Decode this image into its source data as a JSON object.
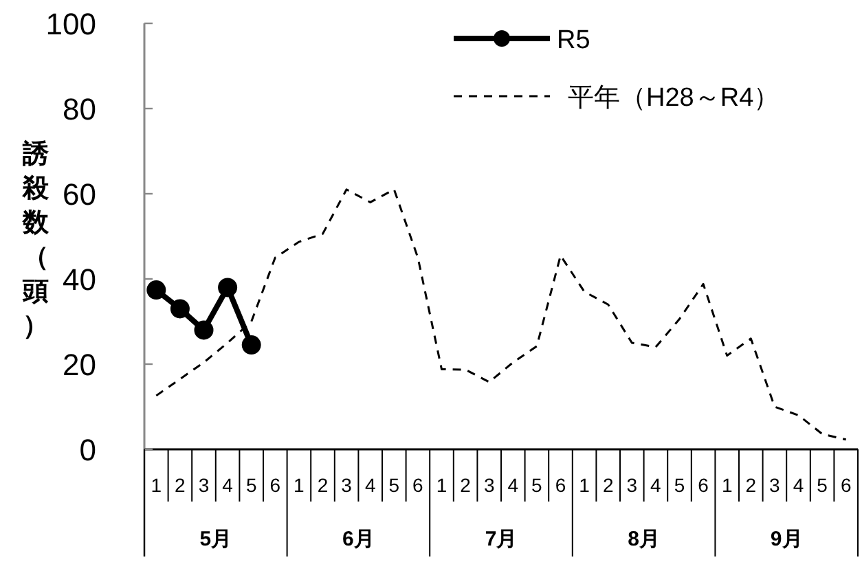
{
  "chart_data": {
    "type": "line",
    "ylabel": "誘殺数（頭）",
    "categories": [
      "1",
      "2",
      "3",
      "4",
      "5",
      "6",
      "1",
      "2",
      "3",
      "4",
      "5",
      "6",
      "1",
      "2",
      "3",
      "4",
      "5",
      "6",
      "1",
      "2",
      "3",
      "4",
      "5",
      "6",
      "1",
      "2",
      "3",
      "4",
      "5",
      "6"
    ],
    "annotations": [
      "5月",
      "6月",
      "7月",
      "8月",
      "9月"
    ],
    "series": [
      {
        "name": "R5",
        "color": "#000000",
        "marker": "circle",
        "line_style": "solid",
        "values": [
          37.4,
          33,
          28,
          38,
          24.5,
          null,
          null,
          null,
          null,
          null,
          null,
          null,
          null,
          null,
          null,
          null,
          null,
          null,
          null,
          null,
          null,
          null,
          null,
          null,
          null,
          null,
          null,
          null,
          null,
          null
        ]
      },
      {
        "name": "平年（H28～R4）",
        "color": "#000000",
        "marker": "none",
        "line_style": "dashed",
        "values": [
          12.6,
          16.5,
          20.4,
          25,
          30,
          45,
          48.7,
          50.6,
          61,
          58,
          61,
          45,
          18.8,
          18.7,
          15.8,
          20.4,
          24.2,
          45.5,
          37,
          34,
          25,
          24,
          30.6,
          38.8,
          22,
          26,
          10,
          8,
          3.6,
          2.3
        ]
      }
    ],
    "ylim": [
      0,
      100
    ],
    "yticks": [
      0,
      20,
      40,
      60,
      80,
      100
    ],
    "grid": false,
    "legend": "top"
  }
}
